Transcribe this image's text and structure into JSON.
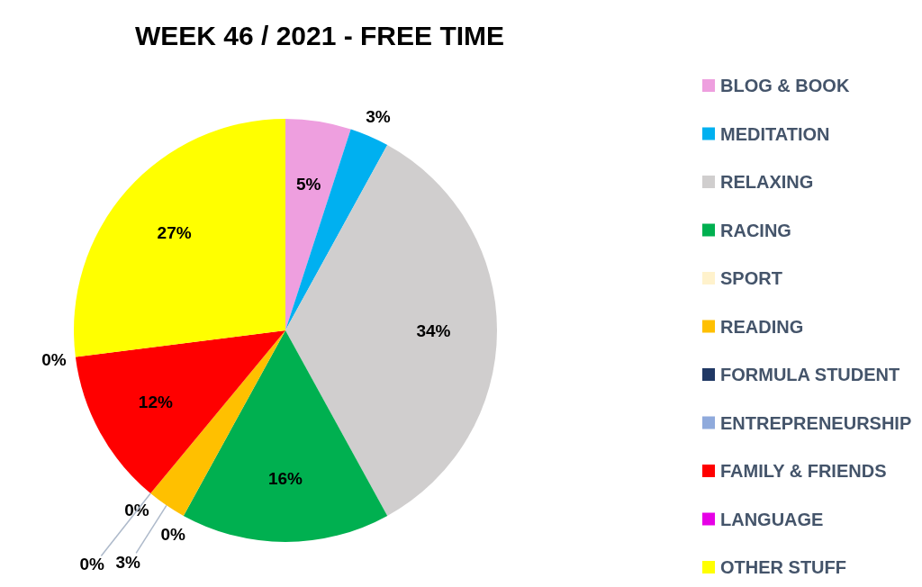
{
  "chart_data": {
    "type": "pie",
    "title": "WEEK 46 / 2021 - FREE TIME",
    "categories": [
      "BLOG & BOOK",
      "MEDITATION",
      "RELAXING",
      "RACING",
      "SPORT",
      "READING",
      "FORMULA STUDENT",
      "ENTREPRENEURSHIP",
      "FAMILY & FRIENDS",
      "LANGUAGE",
      "OTHER STUFF"
    ],
    "values": [
      5,
      3,
      34,
      16,
      0,
      3,
      0,
      0,
      12,
      0,
      27
    ],
    "colors": [
      "#ee9fdf",
      "#00b0f0",
      "#d0cece",
      "#00b050",
      "#fff2cc",
      "#ffc000",
      "#203864",
      "#8faadc",
      "#ff0000",
      "#e600e6",
      "#ffff00"
    ],
    "value_labels": [
      "5%",
      "3%",
      "34%",
      "16%",
      "0%",
      "3%",
      "0%",
      "0%",
      "12%",
      "0%",
      "27%"
    ],
    "legend": "right"
  }
}
